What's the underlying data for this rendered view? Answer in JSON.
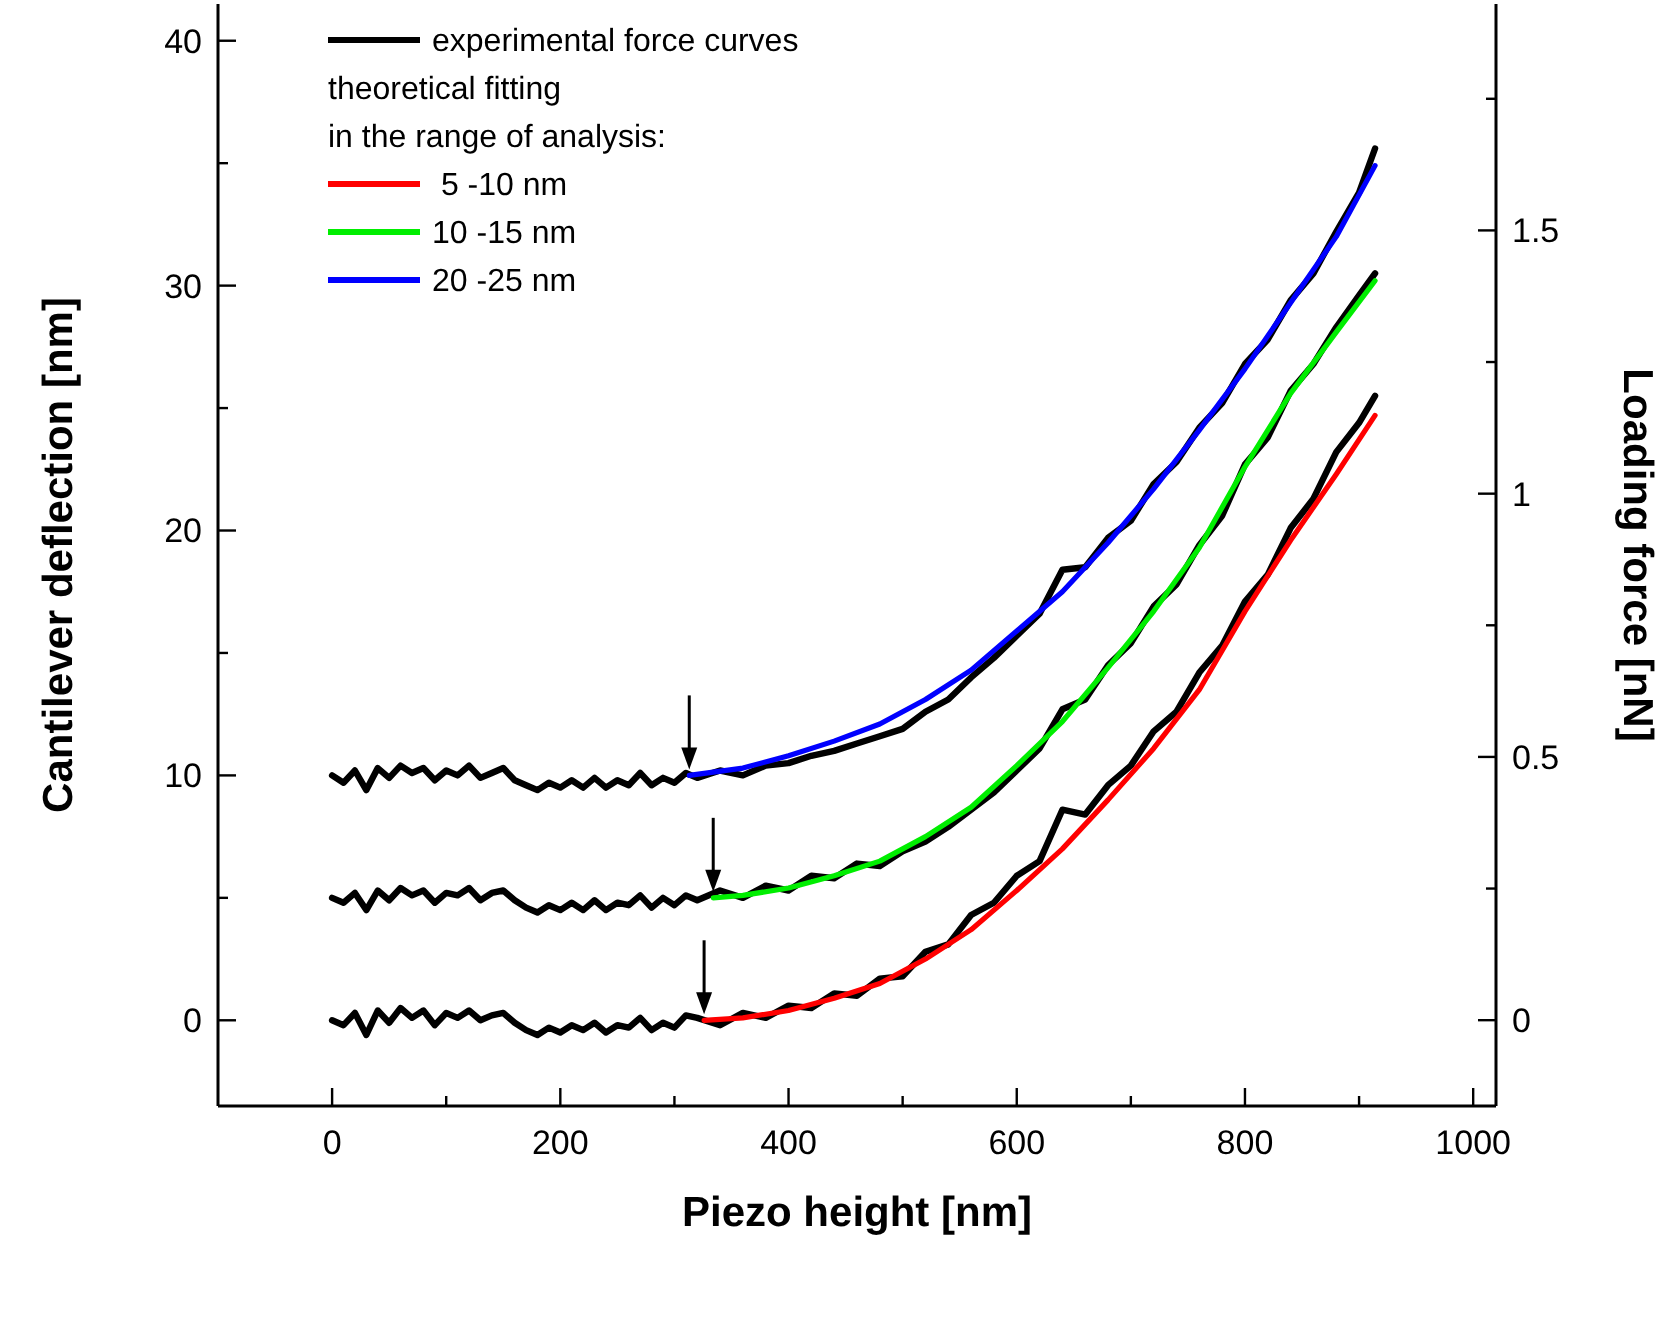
{
  "chart_data": {
    "type": "line",
    "xlabel": "Piezo height [nm]",
    "ylabel": "Cantilever deflection [nm]",
    "y2label": "Loading force [nN]",
    "legend_title": "theoretical fitting\nin the range of analysis:",
    "legend": "top left",
    "line_style": "solid",
    "grid": false,
    "xlim": [
      -100,
      1020
    ],
    "xticks": [
      0,
      {
        "value": 100,
        "label": null
      },
      200,
      {
        "value": 300,
        "label": null
      },
      400,
      {
        "value": 500,
        "label": null
      },
      600,
      {
        "value": 700,
        "label": null
      },
      800,
      {
        "value": 900,
        "label": null
      },
      1000
    ],
    "ylim": [
      -3.5,
      41.5
    ],
    "yticks": [
      0,
      {
        "value": 5,
        "label": null
      },
      10,
      {
        "value": 15,
        "label": null
      },
      20,
      {
        "value": 25,
        "label": null
      },
      30,
      {
        "value": 35,
        "label": null
      },
      40
    ],
    "y2lim": [
      -0.163,
      1.93
    ],
    "y2ticks": [
      0,
      {
        "value": 0.25,
        "label": null
      },
      0.5,
      {
        "value": 0.75,
        "label": null
      },
      1,
      {
        "value": 1.25,
        "label": null
      },
      1.5,
      {
        "value": 1.75,
        "label": null
      }
    ],
    "series": [
      {
        "name": "experimental force curves",
        "color": "#000000",
        "x": [
          0,
          10,
          20,
          30,
          40,
          50,
          60,
          70,
          80,
          90,
          100,
          110,
          120,
          130,
          140,
          150,
          160,
          170,
          180,
          190,
          200,
          210,
          220,
          230,
          240,
          250,
          260,
          270,
          280,
          290,
          300,
          310,
          320,
          340,
          360,
          380,
          400,
          420,
          440,
          460,
          480,
          500,
          520,
          540,
          560,
          580,
          600,
          620,
          640,
          660,
          680,
          700,
          720,
          740,
          760,
          780,
          800,
          820,
          840,
          860,
          880,
          900,
          914
        ],
        "values": [
          0,
          -0.2,
          0.3,
          -0.6,
          0.4,
          -0.1,
          0.5,
          0.1,
          0.4,
          -0.2,
          0.3,
          0.1,
          0.4,
          0,
          0.2,
          0.3,
          -0.1,
          -0.4,
          -0.6,
          -0.3,
          -0.5,
          -0.2,
          -0.4,
          -0.1,
          -0.5,
          -0.2,
          -0.3,
          0.1,
          -0.4,
          -0.1,
          -0.3,
          0.2,
          0.1,
          -0.2,
          0.3,
          0.1,
          0.6,
          0.5,
          1.1,
          1.0,
          1.7,
          1.8,
          2.8,
          3.1,
          4.3,
          4.8,
          5.9,
          6.5,
          8.6,
          8.4,
          9.6,
          10.4,
          11.8,
          12.6,
          14.2,
          15.3,
          17.1,
          18.2,
          20.1,
          21.3,
          23.2,
          24.4,
          25.5
        ]
      },
      {
        "color": "#000000",
        "x": [
          0,
          10,
          20,
          30,
          40,
          50,
          60,
          70,
          80,
          90,
          100,
          110,
          120,
          130,
          140,
          150,
          160,
          170,
          180,
          190,
          200,
          210,
          220,
          230,
          240,
          250,
          260,
          270,
          280,
          290,
          300,
          310,
          320,
          340,
          360,
          380,
          400,
          420,
          440,
          460,
          480,
          500,
          520,
          540,
          560,
          580,
          600,
          620,
          640,
          660,
          680,
          700,
          720,
          740,
          760,
          780,
          800,
          820,
          840,
          860,
          880,
          900,
          914
        ],
        "values": [
          5,
          4.8,
          5.2,
          4.5,
          5.3,
          4.9,
          5.4,
          5.1,
          5.3,
          4.8,
          5.2,
          5.1,
          5.4,
          4.9,
          5.2,
          5.3,
          4.9,
          4.6,
          4.4,
          4.7,
          4.5,
          4.8,
          4.5,
          4.9,
          4.5,
          4.8,
          4.7,
          5.1,
          4.6,
          5,
          4.7,
          5.1,
          4.9,
          5.3,
          5,
          5.5,
          5.3,
          5.9,
          5.8,
          6.4,
          6.3,
          6.9,
          7.3,
          7.9,
          8.6,
          9.3,
          10.2,
          11.1,
          12.7,
          13.1,
          14.5,
          15.4,
          16.9,
          17.8,
          19.4,
          20.6,
          22.7,
          23.8,
          25.7,
          26.8,
          28.3,
          29.6,
          30.5
        ]
      },
      {
        "color": "#000000",
        "x": [
          0,
          10,
          20,
          30,
          40,
          50,
          60,
          70,
          80,
          90,
          100,
          110,
          120,
          130,
          140,
          150,
          160,
          170,
          180,
          190,
          200,
          210,
          220,
          230,
          240,
          250,
          260,
          270,
          280,
          290,
          300,
          310,
          320,
          340,
          360,
          380,
          400,
          420,
          440,
          460,
          480,
          500,
          520,
          540,
          560,
          580,
          600,
          620,
          640,
          660,
          680,
          700,
          720,
          740,
          760,
          780,
          800,
          820,
          840,
          860,
          880,
          900,
          914
        ],
        "values": [
          10,
          9.7,
          10.2,
          9.4,
          10.3,
          9.9,
          10.4,
          10.1,
          10.3,
          9.8,
          10.2,
          10,
          10.4,
          9.9,
          10.1,
          10.3,
          9.8,
          9.6,
          9.4,
          9.7,
          9.5,
          9.8,
          9.5,
          9.9,
          9.5,
          9.8,
          9.6,
          10.1,
          9.6,
          9.9,
          9.7,
          10.1,
          9.9,
          10.2,
          10,
          10.4,
          10.5,
          10.8,
          11,
          11.3,
          11.6,
          11.9,
          12.6,
          13.1,
          14,
          14.8,
          15.7,
          16.6,
          18.4,
          18.5,
          19.7,
          20.4,
          21.9,
          22.8,
          24.2,
          25.2,
          26.8,
          27.8,
          29.4,
          30.5,
          32.2,
          33.8,
          35.6
        ]
      },
      {
        "name": " 5 -10 nm",
        "color": "#ff0000",
        "x": [
          326,
          360,
          400,
          440,
          480,
          520,
          560,
          600,
          640,
          680,
          720,
          760,
          800,
          840,
          880,
          914
        ],
        "values": [
          0,
          0.1,
          0.4,
          0.9,
          1.5,
          2.5,
          3.7,
          5.3,
          7,
          9,
          11.1,
          13.5,
          16.7,
          19.6,
          22.3,
          24.7
        ]
      },
      {
        "name": "10 -15 nm",
        "color": "#00ee00",
        "x": [
          334,
          360,
          400,
          440,
          480,
          520,
          560,
          600,
          640,
          680,
          720,
          760,
          800,
          840,
          880,
          914
        ],
        "values": [
          5,
          5.1,
          5.4,
          5.9,
          6.5,
          7.5,
          8.7,
          10.4,
          12.2,
          14.4,
          16.7,
          19.3,
          22.6,
          25.6,
          28.1,
          30.2
        ]
      },
      {
        "name": "20 -25 nm",
        "color": "#0000ff",
        "x": [
          313,
          360,
          400,
          440,
          480,
          520,
          560,
          600,
          640,
          680,
          720,
          760,
          800,
          840,
          880,
          914
        ],
        "values": [
          10,
          10.3,
          10.8,
          11.4,
          12.1,
          13.1,
          14.3,
          15.9,
          17.5,
          19.5,
          21.7,
          24.1,
          26.6,
          29.3,
          32,
          34.9
        ]
      }
    ]
  }
}
